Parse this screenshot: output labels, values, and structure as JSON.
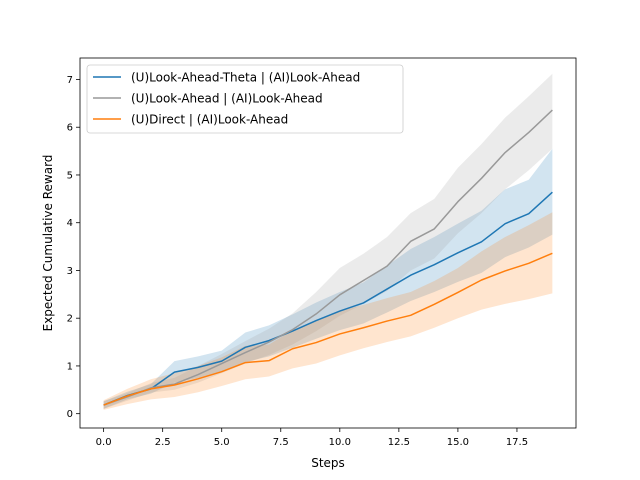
{
  "chart_data": {
    "type": "line",
    "xlabel": "Steps",
    "ylabel": "Expected Cumulative Reward",
    "xlim": [
      -1,
      20
    ],
    "ylim": [
      -0.3,
      7.45
    ],
    "xticks": [
      0,
      2.5,
      5,
      7.5,
      10,
      12.5,
      15,
      17.5
    ],
    "xtick_labels": [
      "0.0",
      "2.5",
      "5.0",
      "7.5",
      "10.0",
      "12.5",
      "15.0",
      "17.5"
    ],
    "yticks": [
      0,
      1,
      2,
      3,
      4,
      5,
      6,
      7
    ],
    "ytick_labels": [
      "0",
      "1",
      "2",
      "3",
      "4",
      "5",
      "6",
      "7"
    ],
    "grid": false,
    "legend_position": "upper-left",
    "x": [
      0,
      1,
      2,
      3,
      4,
      5,
      6,
      7,
      8,
      9,
      10,
      11,
      12,
      13,
      14,
      15,
      16,
      17,
      18,
      19
    ],
    "series": [
      {
        "name": "(U)Look-Ahead-Theta | (AI)Look-Ahead",
        "color": "#1f77b4",
        "values": [
          0.18,
          0.38,
          0.52,
          0.87,
          0.97,
          1.1,
          1.39,
          1.53,
          1.73,
          1.95,
          2.15,
          2.32,
          2.61,
          2.9,
          3.12,
          3.37,
          3.6,
          3.98,
          4.19,
          4.64
        ],
        "lower": [
          0.1,
          0.3,
          0.42,
          0.65,
          0.75,
          0.88,
          1.08,
          1.2,
          1.38,
          1.57,
          1.75,
          1.89,
          2.12,
          2.36,
          2.55,
          2.76,
          2.95,
          3.28,
          3.48,
          3.75
        ],
        "upper": [
          0.26,
          0.46,
          0.62,
          1.1,
          1.2,
          1.32,
          1.7,
          1.85,
          2.08,
          2.33,
          2.55,
          2.75,
          3.1,
          3.45,
          3.7,
          3.98,
          4.25,
          4.7,
          4.9,
          5.55
        ]
      },
      {
        "name": "(U)Look-Ahead | (AI)Look-Ahead",
        "color": "#999999",
        "values": [
          0.18,
          0.35,
          0.54,
          0.62,
          0.82,
          1.05,
          1.28,
          1.5,
          1.76,
          2.09,
          2.49,
          2.79,
          3.09,
          3.61,
          3.87,
          4.44,
          4.93,
          5.47,
          5.89,
          6.36
        ],
        "lower": [
          0.1,
          0.27,
          0.44,
          0.5,
          0.65,
          0.85,
          1.05,
          1.23,
          1.45,
          1.73,
          2.05,
          2.3,
          2.57,
          3.0,
          3.25,
          3.78,
          4.2,
          4.7,
          5.1,
          5.55
        ],
        "upper": [
          0.26,
          0.43,
          0.64,
          0.75,
          1.0,
          1.25,
          1.52,
          1.78,
          2.1,
          2.55,
          3.05,
          3.35,
          3.7,
          4.2,
          4.5,
          5.15,
          5.65,
          6.2,
          6.65,
          7.12
        ]
      },
      {
        "name": "(U)Direct | (AI)Look-Ahead",
        "color": "#ff7f0e",
        "values": [
          0.18,
          0.37,
          0.52,
          0.6,
          0.73,
          0.88,
          1.07,
          1.11,
          1.36,
          1.49,
          1.67,
          1.8,
          1.94,
          2.06,
          2.29,
          2.54,
          2.8,
          2.99,
          3.15,
          3.36
        ],
        "lower": [
          0.08,
          0.2,
          0.3,
          0.35,
          0.45,
          0.58,
          0.72,
          0.78,
          0.95,
          1.05,
          1.22,
          1.37,
          1.5,
          1.62,
          1.8,
          2.0,
          2.18,
          2.3,
          2.4,
          2.52
        ],
        "upper": [
          0.28,
          0.52,
          0.72,
          0.85,
          1.0,
          1.18,
          1.42,
          1.45,
          1.75,
          1.95,
          2.15,
          2.28,
          2.42,
          2.55,
          2.78,
          3.05,
          3.4,
          3.7,
          3.95,
          4.22
        ]
      }
    ]
  }
}
